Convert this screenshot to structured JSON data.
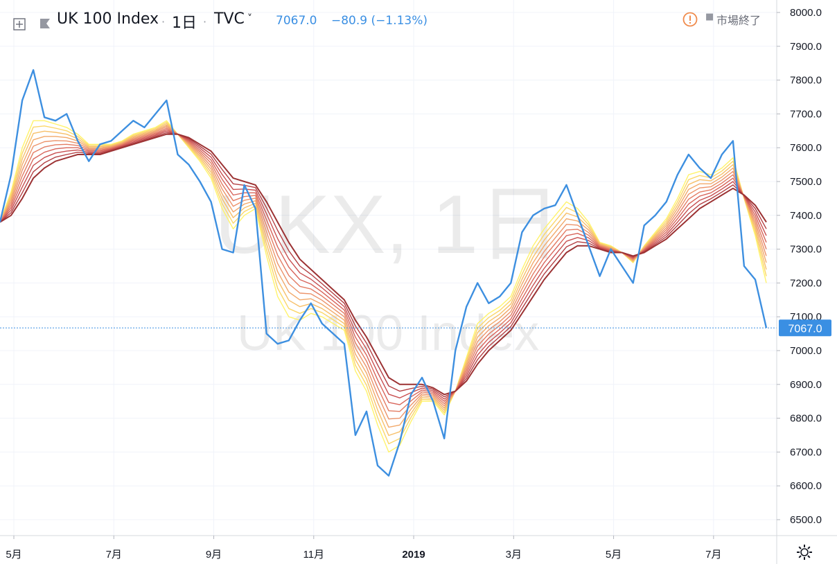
{
  "header": {
    "symbol_name": "UK 100 Index",
    "separator": "·",
    "interval": "1日",
    "exchange": "TVC",
    "chevron": "˅",
    "last_price": "7067.0",
    "change": "−80.9 (−1.13%)",
    "market_dot": "■",
    "market_status": "市場終了"
  },
  "watermark": {
    "ticker": "UKX, 1日",
    "description": "UK 100 Index"
  },
  "price_tag": "7067.0",
  "icons": {
    "expand": "expand-square-icon",
    "symbol": "symbol-flag-icon",
    "warning": "alert-circle-icon",
    "settings": "gear-icon"
  },
  "colors": {
    "price_line": "#3d8fe0",
    "ribbon": [
      "#fff36b",
      "#fbd769",
      "#f7c06a",
      "#f2a96a",
      "#ec936a",
      "#e37c63",
      "#d8655b",
      "#c84f50",
      "#b33f43",
      "#9c3233"
    ],
    "price_tag_bg": "#3a8fe3",
    "accent_warning": "#f08a4b"
  },
  "chart_data": {
    "type": "line",
    "title": "UK 100 Index",
    "ylim": [
      6450,
      8050
    ],
    "yticks": [
      "8000.0",
      "7900.0",
      "7800.0",
      "7700.0",
      "7600.0",
      "7500.0",
      "7400.0",
      "7300.0",
      "7200.0",
      "7100.0",
      "7000.0",
      "6900.0",
      "6800.0",
      "6700.0",
      "6600.0",
      "6500.0"
    ],
    "xticks": [
      {
        "label": "5月",
        "bar": 0
      },
      {
        "label": "7月",
        "bar": 9
      },
      {
        "label": "9月",
        "bar": 18
      },
      {
        "label": "11月",
        "bar": 27
      },
      {
        "label": "2019",
        "bar": 36
      },
      {
        "label": "3月",
        "bar": 45
      },
      {
        "label": "5月",
        "bar": 54
      },
      {
        "label": "7月",
        "bar": 63
      }
    ],
    "grid": true,
    "x_bars": 70,
    "series": [
      {
        "role": "price",
        "values": [
          7380,
          7520,
          7740,
          7830,
          7690,
          7680,
          7700,
          7620,
          7560,
          7610,
          7620,
          7650,
          7680,
          7660,
          7700,
          7740,
          7580,
          7550,
          7500,
          7440,
          7300,
          7290,
          7490,
          7420,
          7050,
          7020,
          7030,
          7090,
          7140,
          7080,
          7050,
          7020,
          6750,
          6820,
          6660,
          6630,
          6730,
          6870,
          6920,
          6850,
          6740,
          7000,
          7130,
          7200,
          7140,
          7160,
          7200,
          7350,
          7400,
          7420,
          7430,
          7490,
          7400,
          7310,
          7220,
          7300,
          7250,
          7200,
          7370,
          7400,
          7440,
          7520,
          7580,
          7540,
          7510,
          7580,
          7620,
          7250,
          7210,
          7067
        ]
      },
      {
        "role": "ema_fast",
        "values": [
          7380,
          7470,
          7600,
          7680,
          7680,
          7670,
          7660,
          7640,
          7610,
          7610,
          7610,
          7620,
          7640,
          7650,
          7660,
          7680,
          7640,
          7600,
          7560,
          7510,
          7420,
          7360,
          7400,
          7420,
          7280,
          7160,
          7100,
          7090,
          7110,
          7100,
          7080,
          7060,
          6940,
          6880,
          6780,
          6700,
          6720,
          6790,
          6850,
          6850,
          6810,
          6880,
          6980,
          7080,
          7110,
          7130,
          7160,
          7240,
          7310,
          7360,
          7400,
          7440,
          7420,
          7380,
          7320,
          7310,
          7290,
          7260,
          7310,
          7350,
          7390,
          7450,
          7520,
          7530,
          7520,
          7540,
          7570,
          7450,
          7340,
          7200
        ]
      },
      {
        "role": "ema_slow",
        "values": [
          7380,
          7400,
          7450,
          7510,
          7540,
          7560,
          7570,
          7580,
          7580,
          7580,
          7590,
          7600,
          7610,
          7620,
          7630,
          7640,
          7640,
          7630,
          7610,
          7590,
          7550,
          7510,
          7500,
          7490,
          7440,
          7380,
          7320,
          7270,
          7240,
          7210,
          7180,
          7150,
          7090,
          7040,
          6980,
          6920,
          6900,
          6900,
          6900,
          6890,
          6870,
          6880,
          6910,
          6960,
          7000,
          7030,
          7060,
          7110,
          7160,
          7210,
          7250,
          7290,
          7310,
          7310,
          7300,
          7290,
          7290,
          7280,
          7290,
          7310,
          7330,
          7360,
          7390,
          7420,
          7440,
          7460,
          7480,
          7460,
          7430,
          7380
        ]
      }
    ]
  }
}
